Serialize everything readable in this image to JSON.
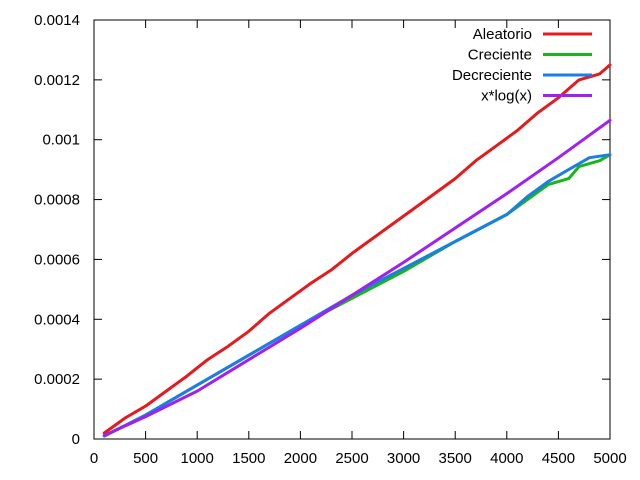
{
  "chart_data": {
    "type": "line",
    "title": "",
    "xlabel": "",
    "ylabel": "",
    "xlim": [
      0,
      5000
    ],
    "ylim": [
      0,
      0.0014
    ],
    "x_ticks": [
      0,
      500,
      1000,
      1500,
      2000,
      2500,
      3000,
      3500,
      4000,
      4500,
      5000
    ],
    "y_ticks": [
      0,
      0.0002,
      0.0004,
      0.0006,
      0.0008,
      0.001,
      0.0012,
      0.0014
    ],
    "x_tick_labels": [
      "0",
      "500",
      "1000",
      "1500",
      "2000",
      "2500",
      "3000",
      "3500",
      "4000",
      "4500",
      "5000"
    ],
    "y_tick_labels": [
      "0",
      "0.0002",
      "0.0004",
      "0.0006",
      "0.0008",
      "0.001",
      "0.0012",
      "0.0014"
    ],
    "grid": false,
    "legend_position": "top-right",
    "series": [
      {
        "name": "Aleatorio",
        "color": "#e41a1c",
        "x": [
          100,
          300,
          500,
          700,
          900,
          1100,
          1300,
          1500,
          1700,
          1900,
          2100,
          2300,
          2500,
          2700,
          2900,
          3100,
          3300,
          3500,
          3700,
          3900,
          4100,
          4300,
          4500,
          4700,
          4900,
          5000
        ],
        "y": [
          2e-05,
          7e-05,
          0.00011,
          0.00016,
          0.00021,
          0.000265,
          0.00031,
          0.00036,
          0.00042,
          0.00047,
          0.00052,
          0.000565,
          0.00062,
          0.00067,
          0.00072,
          0.00077,
          0.00082,
          0.00087,
          0.00093,
          0.00098,
          0.00103,
          0.00109,
          0.00114,
          0.0012,
          0.00122,
          0.00125
        ]
      },
      {
        "name": "Creciente",
        "color": "#1ab51a",
        "x": [
          100,
          500,
          1000,
          1500,
          2000,
          2500,
          3000,
          3500,
          4000,
          4200,
          4400,
          4600,
          4700,
          4900,
          5000
        ],
        "y": [
          1e-05,
          8e-05,
          0.00018,
          0.00028,
          0.00038,
          0.00047,
          0.00056,
          0.00066,
          0.00075,
          0.0008,
          0.00085,
          0.00087,
          0.00091,
          0.00093,
          0.00095
        ]
      },
      {
        "name": "Decreciente",
        "color": "#1a7ee6",
        "x": [
          100,
          500,
          1000,
          1500,
          2000,
          2500,
          3000,
          3500,
          4000,
          4200,
          4400,
          4600,
          4800,
          5000
        ],
        "y": [
          1e-05,
          8e-05,
          0.00018,
          0.00028,
          0.00038,
          0.00048,
          0.00057,
          0.00066,
          0.00075,
          0.00081,
          0.00086,
          0.0009,
          0.00094,
          0.00095
        ]
      },
      {
        "name": "x*log(x)",
        "color": "#a020f0",
        "x": [
          100,
          500,
          1000,
          1500,
          2000,
          2500,
          3000,
          3500,
          4000,
          4500,
          5000
        ],
        "y": [
          1.2e-05,
          7.5e-05,
          0.00016,
          0.000265,
          0.00037,
          0.00048,
          0.00059,
          0.000705,
          0.00082,
          0.00094,
          0.001065
        ]
      }
    ]
  }
}
